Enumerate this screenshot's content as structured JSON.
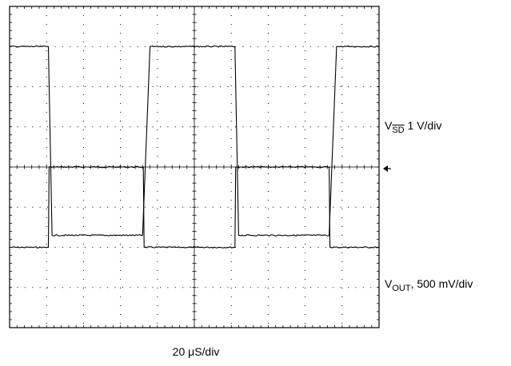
{
  "chart_data": {
    "type": "line",
    "title": "",
    "divisions": {
      "horizontal": 10,
      "vertical": 8
    },
    "grid": true,
    "x_range_div": [
      0,
      10
    ],
    "y_range_div": [
      0,
      8
    ],
    "series": [
      {
        "name": "V_SD",
        "label_main": "V",
        "label_sub": "SD",
        "label_scale": " 1 V/div",
        "color": "#000000",
        "x": [
          0,
          1.05,
          1.07,
          3.62,
          3.64,
          6.1,
          6.12,
          8.65,
          8.67,
          10
        ],
        "y": [
          2.0,
          2.0,
          4.0,
          4.0,
          2.0,
          2.0,
          4.0,
          4.0,
          2.0,
          2.0
        ]
      },
      {
        "name": "V_OUT",
        "label_main": "V",
        "label_sub": "OUT",
        "label_scale": ", 500 mV/div",
        "color": "#000000",
        "x": [
          0,
          1.05,
          1.15,
          3.6,
          3.8,
          6.1,
          6.2,
          8.65,
          8.85,
          10
        ],
        "y": [
          7.0,
          7.0,
          2.3,
          2.3,
          7.0,
          7.0,
          2.3,
          2.3,
          7.0,
          7.0
        ]
      }
    ],
    "xlabel": "20 μS/div",
    "ground_marker": "arrow-left-icon"
  }
}
